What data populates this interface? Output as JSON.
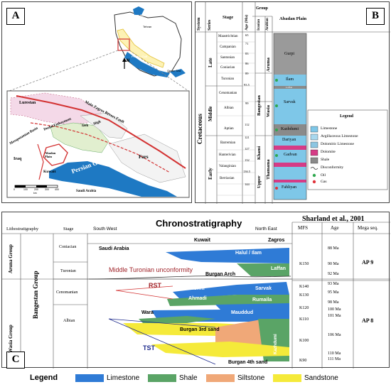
{
  "colors": {
    "limestone": "#2f7bd6",
    "shale": "#5aa466",
    "siltstone": "#f0a878",
    "sandstone": "#f5ea3a",
    "sea": "#1e79c3",
    "fault": "#d33333",
    "oil": "#2fa84f",
    "gas": "#e0333a",
    "dolomite": "#d63b86"
  },
  "panel_a": {
    "badge": "A",
    "labels": {
      "caspian": "Caspian Sea",
      "tehran": "Tehran",
      "gulf_small": "Persian Gulf",
      "oman_small": "Oman Sea",
      "north": "N",
      "lurestan": "Lurestan",
      "mzrf": "Main Zagros Revers Fault",
      "dezful": "Dezful Embayment",
      "izeh": "Izeh",
      "high": "High",
      "iraq": "Iraq",
      "mesopotamian": "Mesopotamian Basin",
      "abadan": "Abadan Plain",
      "kuwait": "Kuwait",
      "persian_gulf": "Persian Gulf",
      "fars": "Fars",
      "saudi": "Saudi Arabia",
      "scale_values": [
        "0",
        "100",
        "200",
        "300",
        "400"
      ],
      "scale_unit": "km"
    }
  },
  "panel_b": {
    "badge": "B",
    "headers": {
      "system": "System",
      "series": "Series",
      "stage": "Stage",
      "age": "Age (Ma)",
      "group": "Group",
      "iranian": "Iranian",
      "arabian": "Arabian",
      "plain": "Abadan Plain"
    },
    "system": "Cretaceous",
    "series": [
      "Late",
      "Middle",
      "Early"
    ],
    "stages": [
      "Maastrichtian",
      "Campanian",
      "Santonian",
      "Coniacian",
      "Turonian",
      "Cenomanian",
      "Albian",
      "Aptian",
      "Barremian",
      "Hanterivian",
      "Valanginian",
      "Berriasian"
    ],
    "ages": [
      "65",
      "71",
      "83",
      "86",
      "89",
      "93.5",
      "99",
      "112",
      "121",
      "127",
      "132",
      "136.5",
      "144"
    ],
    "groups_iranian": [
      "Bangestan",
      "Khami"
    ],
    "groups_arabian": [
      "Aruma",
      "Wasia",
      "Thamama"
    ],
    "upper": "Upper",
    "formations": [
      "Gurpi",
      "Ilam",
      "Laffan",
      "Sarvak",
      "Kazhdumi",
      "Dariyan",
      "Gadvan",
      "Fahliyan"
    ],
    "legend_title": "Legend",
    "legend_items": [
      "Limestone",
      "Argillaceous Limestone",
      "Dolomitic Limestone",
      "Dolomite",
      "Shale",
      "Disconformity",
      "Oil",
      "Gas"
    ]
  },
  "panel_c": {
    "badge": "C",
    "headers": {
      "litho": "Lithostratigraphy",
      "stage": "Stage",
      "sw": "South West",
      "title": "Chronostratigraphy",
      "ne": "North East",
      "source": "Sharland et al., 2001",
      "mfs": "MFS",
      "age": "Age",
      "mega": "Mega seq."
    },
    "groups": [
      "Aruna Group",
      "Wasia Group",
      "Bangestan Group"
    ],
    "stages": [
      "Coniacian",
      "Turonian",
      "Cenomanian",
      "Albian"
    ],
    "regions": [
      "Saudi Arabia",
      "Kuwait",
      "Zagros"
    ],
    "formations": [
      "Halul / Ilam",
      "Laffan",
      "Mishrif",
      "Sarvak",
      "Ahmadi",
      "Rumaila",
      "Mauddud",
      "Wara",
      "Burgan 3rd sand",
      "Burgan 4th sand",
      "Kazhdumi"
    ],
    "annotations": [
      "Middle Turonian unconformity",
      "Burgan Arch",
      "RST",
      "TST"
    ],
    "mfs": [
      "K150",
      "K140",
      "K130",
      "K120",
      "K110",
      "K100",
      "K90"
    ],
    "ages": [
      "88 Ma",
      "90 Ma",
      "92 Ma",
      "93 Ma",
      "95 Ma",
      "98 Ma",
      "100 Ma",
      "101 Ma",
      "106 Ma",
      "110 Ma",
      "111 Ma"
    ],
    "megaseq": [
      "AP 9",
      "AP 8"
    ]
  },
  "legend": {
    "title": "Legend",
    "items": [
      "Limestone",
      "Shale",
      "Siltstone",
      "Sandstone"
    ]
  }
}
